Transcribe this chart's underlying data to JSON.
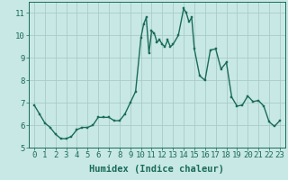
{
  "x": [
    0,
    0.5,
    1,
    1.5,
    2,
    2.5,
    3,
    3.5,
    4,
    4.5,
    5,
    5.5,
    6,
    6.5,
    7,
    7.5,
    8,
    8.5,
    9,
    9.5,
    10,
    10.25,
    10.5,
    10.75,
    11,
    11.25,
    11.5,
    11.75,
    12,
    12.25,
    12.5,
    12.75,
    13,
    13.5,
    14,
    14.25,
    14.5,
    14.75,
    15,
    15.5,
    16,
    16.5,
    17,
    17.5,
    18,
    18.5,
    19,
    19.5,
    20,
    20.5,
    21,
    21.5,
    22,
    22.5,
    23
  ],
  "y": [
    6.9,
    6.5,
    6.1,
    5.9,
    5.6,
    5.4,
    5.4,
    5.5,
    5.8,
    5.9,
    5.9,
    6.0,
    6.35,
    6.35,
    6.35,
    6.2,
    6.2,
    6.5,
    7.0,
    7.5,
    9.9,
    10.5,
    10.8,
    9.2,
    10.2,
    10.1,
    9.7,
    9.8,
    9.6,
    9.5,
    9.8,
    9.5,
    9.6,
    10.0,
    11.2,
    11.0,
    10.6,
    10.8,
    9.4,
    8.2,
    8.0,
    9.35,
    9.4,
    8.5,
    8.8,
    7.25,
    6.85,
    6.9,
    7.3,
    7.05,
    7.1,
    6.85,
    6.15,
    5.95,
    6.2
  ],
  "line_color": "#1a6b5a",
  "marker_color": "#1a6b5a",
  "bg_color": "#c8e8e5",
  "grid_color": "#a8ccc8",
  "xlabel": "Humidex (Indice chaleur)",
  "xlim": [
    -0.5,
    23.5
  ],
  "ylim": [
    5.0,
    11.5
  ],
  "xticks": [
    0,
    1,
    2,
    3,
    4,
    5,
    6,
    7,
    8,
    9,
    10,
    11,
    12,
    13,
    14,
    15,
    16,
    17,
    18,
    19,
    20,
    21,
    22,
    23
  ],
  "yticks": [
    5,
    6,
    7,
    8,
    9,
    10,
    11
  ],
  "tick_label_color": "#1a6b5a",
  "xlabel_fontsize": 7.5,
  "tick_fontsize": 6.5,
  "marker_size": 2.0,
  "line_width": 1.0
}
